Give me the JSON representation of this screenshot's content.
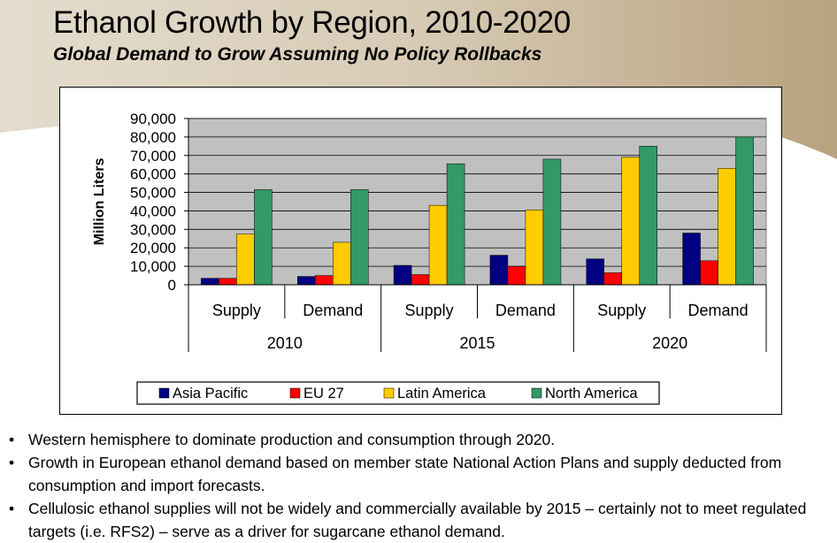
{
  "slide": {
    "title": "Ethanol Growth by Region, 2010-2020",
    "subtitle": "Global Demand to Grow Assuming No Policy Rollbacks"
  },
  "chart_data": {
    "type": "bar",
    "ylabel": "Million Liters",
    "ylim": [
      0,
      90000
    ],
    "yticks": [
      "90,000",
      "80,000",
      "70,000",
      "60,000",
      "50,000",
      "40,000",
      "30,000",
      "20,000",
      "10,000",
      "0"
    ],
    "yticks_values": [
      90000,
      80000,
      70000,
      60000,
      50000,
      40000,
      30000,
      20000,
      10000,
      0
    ],
    "categories": [
      "Supply",
      "Demand",
      "Supply",
      "Demand",
      "Supply",
      "Demand"
    ],
    "groups": [
      "2010",
      "2015",
      "2020"
    ],
    "grid": "horizontal",
    "plot_background": "#c0c0c0",
    "legend_position": "bottom",
    "series": [
      {
        "name": "Asia Pacific",
        "color": "#000080",
        "values": [
          3500,
          4500,
          10500,
          16000,
          14000,
          28000
        ]
      },
      {
        "name": "EU 27",
        "color": "#ff0000",
        "values": [
          3500,
          5000,
          5500,
          10000,
          6500,
          13000
        ]
      },
      {
        "name": "Latin America",
        "color": "#ffcc00",
        "values": [
          27500,
          23000,
          43000,
          40500,
          69000,
          63000
        ]
      },
      {
        "name": "North America",
        "color": "#339966",
        "values": [
          51500,
          51500,
          65500,
          68000,
          75000,
          80000
        ]
      }
    ]
  },
  "bullets": [
    "Western hemisphere to dominate production and consumption through 2020.",
    "Growth in European ethanol demand based on member state National Action Plans and supply deducted from consumption and import forecasts.",
    "Cellulosic ethanol supplies will not be widely and commercially available by 2015 – certainly not to meet regulated targets (i.e. RFS2) – serve as a driver for sugarcane ethanol demand."
  ],
  "bullet_symbol": "•"
}
